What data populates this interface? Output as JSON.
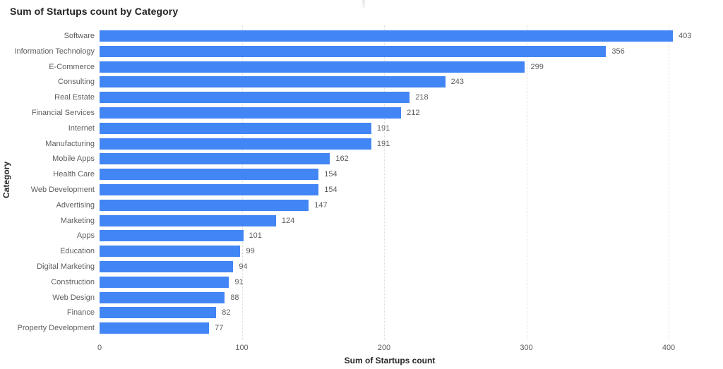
{
  "page": {
    "title": "Sum of Startups count by Category"
  },
  "chart_data": {
    "type": "bar",
    "orientation": "horizontal",
    "title": "Sum of Startups count by Category",
    "xlabel": "Sum of Startups count",
    "ylabel": "Category",
    "categories": [
      "Software",
      "Information Technology",
      "E-Commerce",
      "Consulting",
      "Real Estate",
      "Financial Services",
      "Internet",
      "Manufacturing",
      "Mobile Apps",
      "Health Care",
      "Web Development",
      "Advertising",
      "Marketing",
      "Apps",
      "Education",
      "Digital Marketing",
      "Construction",
      "Web Design",
      "Finance",
      "Property Development"
    ],
    "values": [
      403,
      356,
      299,
      243,
      218,
      212,
      191,
      191,
      162,
      154,
      154,
      147,
      124,
      101,
      99,
      94,
      91,
      88,
      82,
      77
    ],
    "value_labels": true,
    "xticks": [
      0,
      100,
      200,
      300,
      400
    ],
    "xlim": [
      0,
      430
    ],
    "grid": "vertical-dotted",
    "legend": "none",
    "colors": {
      "bar": "#4285F4",
      "labels": "#605e5c",
      "titles": "#252423",
      "gridlines": "#dcdcdc",
      "background": "#ffffff"
    }
  }
}
